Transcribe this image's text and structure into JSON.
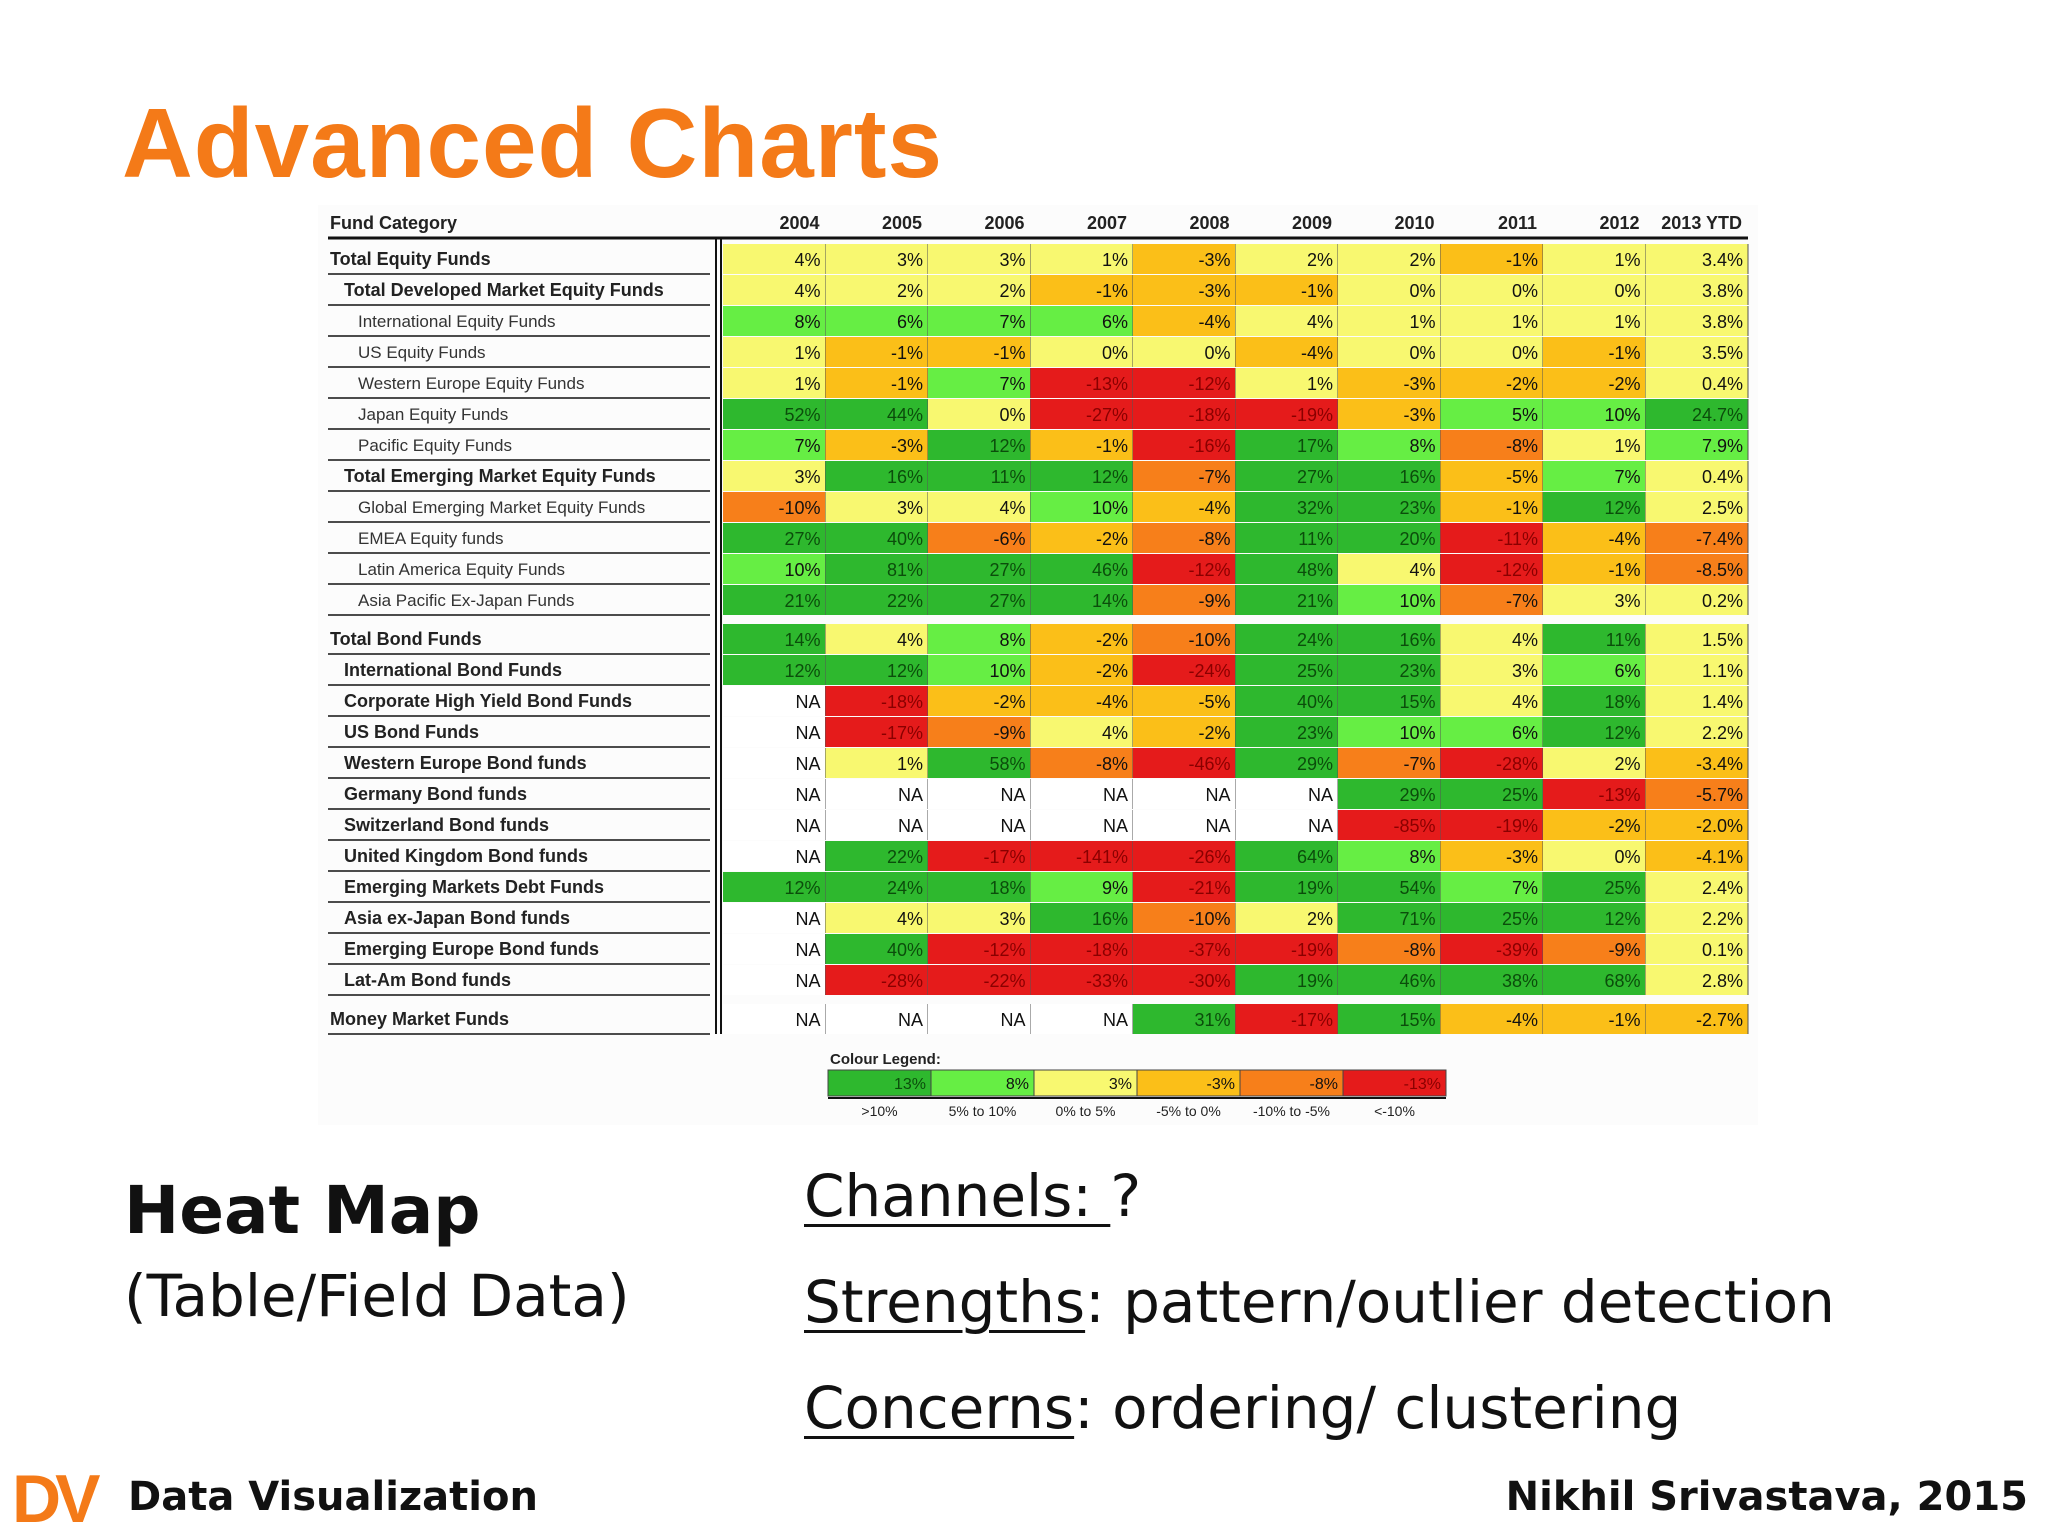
{
  "slide": {
    "title": "Advanced Charts",
    "chart_type_label": "Heat Map",
    "chart_type_sub": "(Table/Field Data)",
    "channels_label": "Channels: ",
    "channels_value": "?",
    "strengths_label": "Strengths",
    "strengths_value": ": pattern/outlier detection",
    "concerns_label": "Concerns",
    "concerns_value": ": ordering/ clustering",
    "footer_logo": "DV",
    "footer_left": "Data Visualization",
    "footer_right": "Nikhil Srivastava, 2015",
    "title_color": "#f47a18"
  },
  "chart_data": {
    "type": "heatmap",
    "row_header": "Fund Category",
    "columns": [
      "2004",
      "2005",
      "2006",
      "2007",
      "2008",
      "2009",
      "2010",
      "2011",
      "2012",
      "2013 YTD"
    ],
    "rows": [
      {
        "label": "Total Equity Funds",
        "level": 0,
        "bold": true,
        "values": [
          "4%",
          "3%",
          "3%",
          "1%",
          "-3%",
          "2%",
          "2%",
          "-1%",
          "1%",
          "3.4%"
        ]
      },
      {
        "label": "Total Developed Market Equity Funds",
        "level": 1,
        "bold": true,
        "values": [
          "4%",
          "2%",
          "2%",
          "-1%",
          "-3%",
          "-1%",
          "0%",
          "0%",
          "0%",
          "3.8%"
        ]
      },
      {
        "label": "International Equity Funds",
        "level": 2,
        "bold": false,
        "values": [
          "8%",
          "6%",
          "7%",
          "6%",
          "-4%",
          "4%",
          "1%",
          "1%",
          "1%",
          "3.8%"
        ]
      },
      {
        "label": "US Equity Funds",
        "level": 2,
        "bold": false,
        "values": [
          "1%",
          "-1%",
          "-1%",
          "0%",
          "0%",
          "-4%",
          "0%",
          "0%",
          "-1%",
          "3.5%"
        ]
      },
      {
        "label": "Western Europe Equity Funds",
        "level": 2,
        "bold": false,
        "values": [
          "1%",
          "-1%",
          "7%",
          "-13%",
          "-12%",
          "1%",
          "-3%",
          "-2%",
          "-2%",
          "0.4%"
        ]
      },
      {
        "label": "Japan Equity Funds",
        "level": 2,
        "bold": false,
        "values": [
          "52%",
          "44%",
          "0%",
          "-27%",
          "-18%",
          "-19%",
          "-3%",
          "5%",
          "10%",
          "24.7%"
        ]
      },
      {
        "label": "Pacific Equity Funds",
        "level": 2,
        "bold": false,
        "values": [
          "7%",
          "-3%",
          "12%",
          "-1%",
          "-16%",
          "17%",
          "8%",
          "-8%",
          "1%",
          "7.9%"
        ]
      },
      {
        "label": "Total Emerging Market Equity Funds",
        "level": 1,
        "bold": true,
        "values": [
          "3%",
          "16%",
          "11%",
          "12%",
          "-7%",
          "27%",
          "16%",
          "-5%",
          "7%",
          "0.4%"
        ]
      },
      {
        "label": "Global Emerging Market Equity Funds",
        "level": 2,
        "bold": false,
        "values": [
          "-10%",
          "3%",
          "4%",
          "10%",
          "-4%",
          "32%",
          "23%",
          "-1%",
          "12%",
          "2.5%"
        ]
      },
      {
        "label": "EMEA Equity funds",
        "level": 2,
        "bold": false,
        "values": [
          "27%",
          "40%",
          "-6%",
          "-2%",
          "-8%",
          "11%",
          "20%",
          "-11%",
          "-4%",
          "-7.4%"
        ]
      },
      {
        "label": "Latin America Equity Funds",
        "level": 2,
        "bold": false,
        "values": [
          "10%",
          "81%",
          "27%",
          "46%",
          "-12%",
          "48%",
          "4%",
          "-12%",
          "-1%",
          "-8.5%"
        ]
      },
      {
        "label": "Asia Pacific Ex-Japan Funds",
        "level": 2,
        "bold": false,
        "values": [
          "21%",
          "22%",
          "27%",
          "14%",
          "-9%",
          "21%",
          "10%",
          "-7%",
          "3%",
          "0.2%"
        ]
      },
      {
        "label": "Total Bond Funds",
        "level": 0,
        "bold": true,
        "values": [
          "14%",
          "4%",
          "8%",
          "-2%",
          "-10%",
          "24%",
          "16%",
          "4%",
          "11%",
          "1.5%"
        ]
      },
      {
        "label": "International Bond Funds",
        "level": 1,
        "bold": true,
        "values": [
          "12%",
          "12%",
          "10%",
          "-2%",
          "-24%",
          "25%",
          "23%",
          "3%",
          "6%",
          "1.1%"
        ]
      },
      {
        "label": "Corporate High Yield Bond Funds",
        "level": 1,
        "bold": true,
        "values": [
          "NA",
          "-18%",
          "-2%",
          "-4%",
          "-5%",
          "40%",
          "15%",
          "4%",
          "18%",
          "1.4%"
        ]
      },
      {
        "label": "US Bond Funds",
        "level": 1,
        "bold": true,
        "values": [
          "NA",
          "-17%",
          "-9%",
          "4%",
          "-2%",
          "23%",
          "10%",
          "6%",
          "12%",
          "2.2%"
        ]
      },
      {
        "label": "Western Europe Bond funds",
        "level": 1,
        "bold": true,
        "values": [
          "NA",
          "1%",
          "58%",
          "-8%",
          "-46%",
          "29%",
          "-7%",
          "-28%",
          "2%",
          "-3.4%"
        ]
      },
      {
        "label": "Germany Bond funds",
        "level": 1,
        "bold": true,
        "values": [
          "NA",
          "NA",
          "NA",
          "NA",
          "NA",
          "NA",
          "29%",
          "25%",
          "-13%",
          "-5.7%"
        ]
      },
      {
        "label": "Switzerland Bond funds",
        "level": 1,
        "bold": true,
        "values": [
          "NA",
          "NA",
          "NA",
          "NA",
          "NA",
          "NA",
          "-85%",
          "-19%",
          "-2%",
          "-2.0%"
        ]
      },
      {
        "label": "United Kingdom Bond funds",
        "level": 1,
        "bold": true,
        "values": [
          "NA",
          "22%",
          "-17%",
          "-141%",
          "-26%",
          "64%",
          "8%",
          "-3%",
          "0%",
          "-4.1%"
        ]
      },
      {
        "label": "Emerging Markets Debt Funds",
        "level": 1,
        "bold": true,
        "values": [
          "12%",
          "24%",
          "18%",
          "9%",
          "-21%",
          "19%",
          "54%",
          "7%",
          "25%",
          "2.4%"
        ]
      },
      {
        "label": "Asia ex-Japan Bond funds",
        "level": 1,
        "bold": true,
        "values": [
          "NA",
          "4%",
          "3%",
          "16%",
          "-10%",
          "2%",
          "71%",
          "25%",
          "12%",
          "2.2%"
        ]
      },
      {
        "label": "Emerging Europe Bond funds",
        "level": 1,
        "bold": true,
        "values": [
          "NA",
          "40%",
          "-12%",
          "-18%",
          "-37%",
          "-19%",
          "-8%",
          "-39%",
          "-9%",
          "0.1%"
        ]
      },
      {
        "label": "Lat-Am Bond funds",
        "level": 1,
        "bold": true,
        "values": [
          "NA",
          "-28%",
          "-22%",
          "-33%",
          "-30%",
          "19%",
          "46%",
          "38%",
          "68%",
          "2.8%"
        ]
      },
      {
        "label": "Money Market Funds",
        "level": 0,
        "bold": true,
        "values": [
          "NA",
          "NA",
          "NA",
          "NA",
          "31%",
          "-17%",
          "15%",
          "-4%",
          "-1%",
          "-2.7%"
        ]
      }
    ],
    "legend": {
      "title": "Colour Legend:",
      "items": [
        {
          "sample": "13%",
          "range": ">10%",
          "color": "#2eb82e"
        },
        {
          "sample": "8%",
          "range": "5% to 10%",
          "color": "#66ee44"
        },
        {
          "sample": "3%",
          "range": "0% to 5%",
          "color": "#f8f870"
        },
        {
          "sample": "-3%",
          "range": "-5% to 0%",
          "color": "#fbbf18"
        },
        {
          "sample": "-8%",
          "range": "-10% to -5%",
          "color": "#f77f1a"
        },
        {
          "sample": "-13%",
          "range": "<-10%",
          "color": "#e51b1b"
        }
      ]
    },
    "na_color": "#ffffff"
  }
}
